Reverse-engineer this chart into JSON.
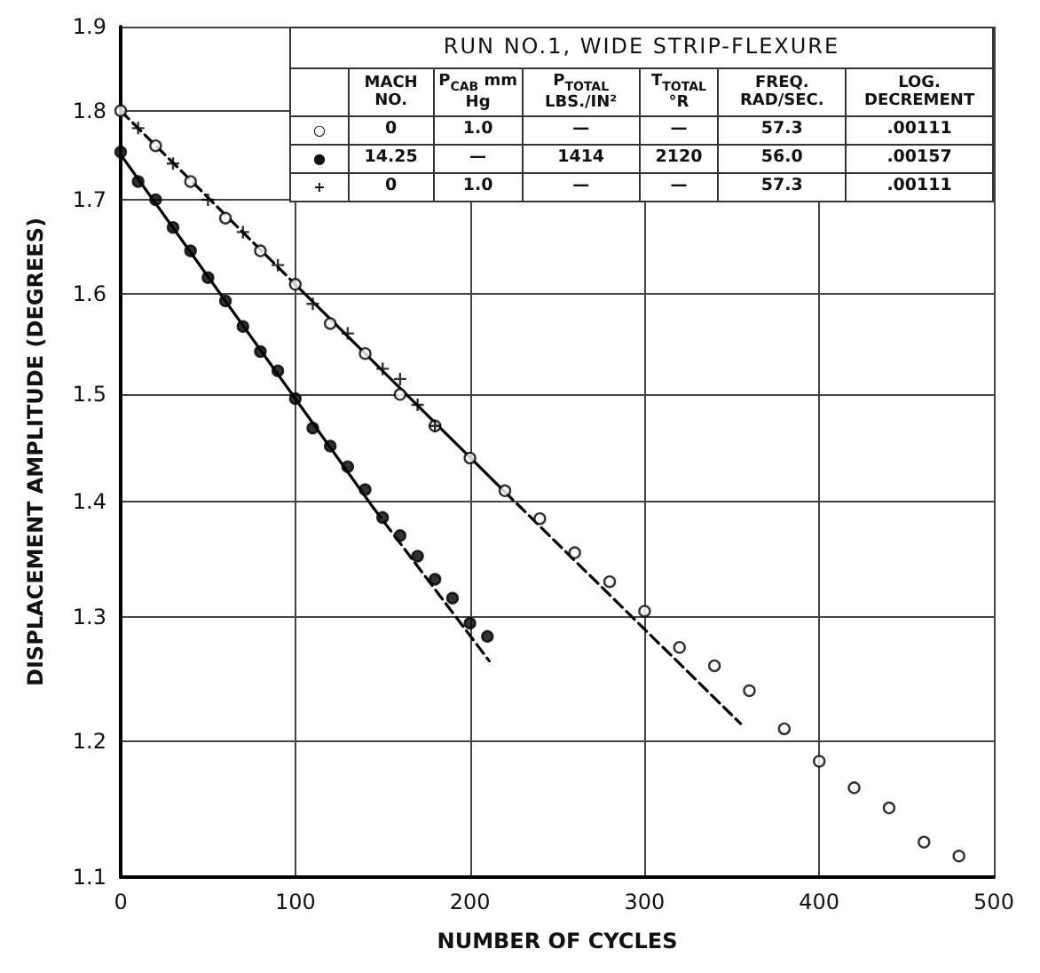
{
  "chart_data": {
    "type": "scatter",
    "title": "RUN NO.1, WIDE STRIP-FLEXURE",
    "xlabel": "NUMBER OF CYCLES",
    "ylabel": "DISPLACEMENT AMPLITUDE (DEGREES)",
    "annotations": [
      "MACH NO.",
      "P$_{CAB}$ mm Hg",
      "P$_{TOTAL}$ LBS./IN²",
      "T$_{TOTAL}$ °R",
      "FREQ. RAD/SEC.",
      "LOG. DECREMENT",
      "○",
      "0",
      "1.0",
      "—",
      "—",
      "57.3",
      ".00111",
      "●",
      "14.25",
      "—",
      "1414",
      "2120",
      "56.0",
      ".00157",
      "+",
      "0",
      "1.0",
      "—",
      "—",
      "57.3",
      ".00111"
    ],
    "log": "y",
    "grid": true,
    "xlim": [
      0,
      500
    ],
    "xticks": [
      0,
      100,
      200,
      300,
      400,
      500
    ],
    "ylim": [
      1.1,
      1.9
    ],
    "yticks": [
      1.1,
      1.2,
      1.3,
      1.4,
      1.5,
      1.6,
      1.7,
      1.8,
      1.9
    ],
    "series": [
      {
        "marker": "circle",
        "color": "#ffffff",
        "x": [
          0,
          20,
          40,
          60,
          80,
          100,
          120,
          140,
          160,
          180,
          200,
          220,
          240,
          260,
          280,
          300,
          320,
          340,
          360,
          380,
          400,
          420,
          440,
          460,
          480
        ],
        "values": [
          1.8,
          1.76,
          1.72,
          1.68,
          1.645,
          1.61,
          1.57,
          1.54,
          1.5,
          1.47,
          1.44,
          1.41,
          1.385,
          1.355,
          1.33,
          1.305,
          1.275,
          1.26,
          1.24,
          1.21,
          1.185,
          1.165,
          1.15,
          1.125,
          1.115
        ]
      },
      {
        "marker": "circle",
        "color": "#000000",
        "x": [
          0,
          10,
          20,
          30,
          40,
          50,
          60,
          70,
          80,
          90,
          100,
          110,
          120,
          130,
          140,
          150,
          160,
          170,
          180,
          190,
          200,
          210
        ],
        "values": [
          1.753,
          1.72,
          1.7,
          1.67,
          1.645,
          1.617,
          1.593,
          1.567,
          1.542,
          1.523,
          1.496,
          1.468,
          1.451,
          1.432,
          1.411,
          1.386,
          1.37,
          1.352,
          1.332,
          1.316,
          1.295,
          1.284
        ]
      },
      {
        "marker": "cross",
        "color": "#000000",
        "x": [
          10,
          30,
          50,
          70,
          90,
          110,
          130,
          150,
          160,
          170,
          180
        ],
        "values": [
          1.78,
          1.74,
          1.7,
          1.665,
          1.63,
          1.59,
          1.56,
          1.525,
          1.515,
          1.49,
          1.47
        ]
      },
      {
        "type": "line",
        "marker": "none",
        "line_style": "dashed",
        "color": "#000000",
        "x": [
          0,
          100
        ],
        "values": [
          1.8,
          1.61
        ]
      },
      {
        "type": "line",
        "marker": "none",
        "line_style": "solid",
        "color": "#000000",
        "x": [
          100,
          220
        ],
        "values": [
          1.61,
          1.409
        ]
      },
      {
        "type": "line",
        "marker": "none",
        "line_style": "dashed",
        "color": "#000000",
        "x": [
          220,
          355
        ],
        "values": [
          1.409,
          1.214
        ]
      },
      {
        "type": "line",
        "marker": "none",
        "line_style": "solid",
        "color": "#000000",
        "x": [
          0,
          145
        ],
        "values": [
          1.75,
          1.394
        ]
      },
      {
        "type": "line",
        "marker": "none",
        "line_style": "dashed",
        "color": "#000000",
        "x": [
          145,
          211
        ],
        "values": [
          1.394,
          1.264
        ]
      }
    ]
  }
}
